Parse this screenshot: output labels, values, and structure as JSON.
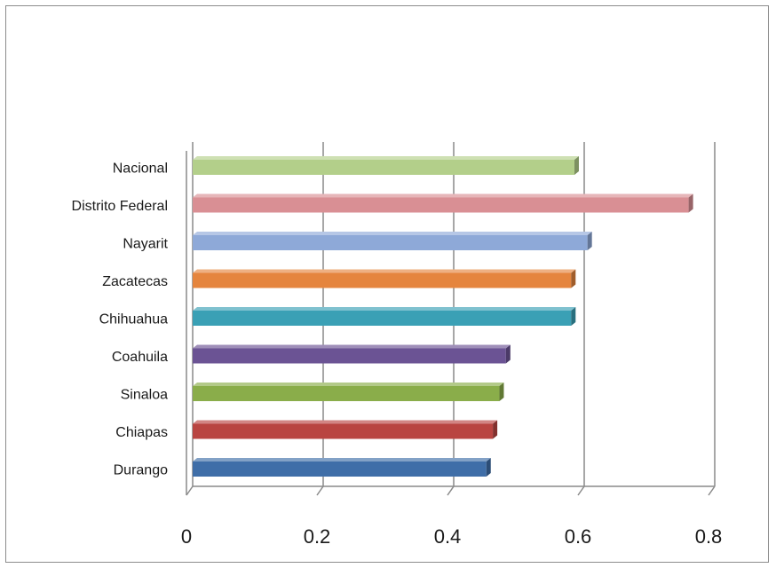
{
  "chart_data": {
    "type": "bar",
    "orientation": "horizontal",
    "style": "3d",
    "title": "",
    "xlabel": "",
    "ylabel": "",
    "xlim": [
      0,
      0.8
    ],
    "x_ticks": [
      "0",
      "0.2",
      "0.4",
      "0.6",
      "0.8"
    ],
    "grid": true,
    "legend": "none",
    "categories": [
      "Nacional",
      "Distrito Federal",
      "Nayarit",
      "Zacatecas",
      "Chihuahua",
      "Coahuila",
      "Sinaloa",
      "Chiapas",
      "Durango"
    ],
    "values": [
      0.585,
      0.76,
      0.605,
      0.58,
      0.58,
      0.48,
      0.47,
      0.46,
      0.45
    ],
    "colors": [
      "#b3cf8a",
      "#d98f94",
      "#8ea9d8",
      "#e5853e",
      "#3aa0b5",
      "#6b5394",
      "#8aad4a",
      "#b94441",
      "#3f6ea8"
    ]
  }
}
